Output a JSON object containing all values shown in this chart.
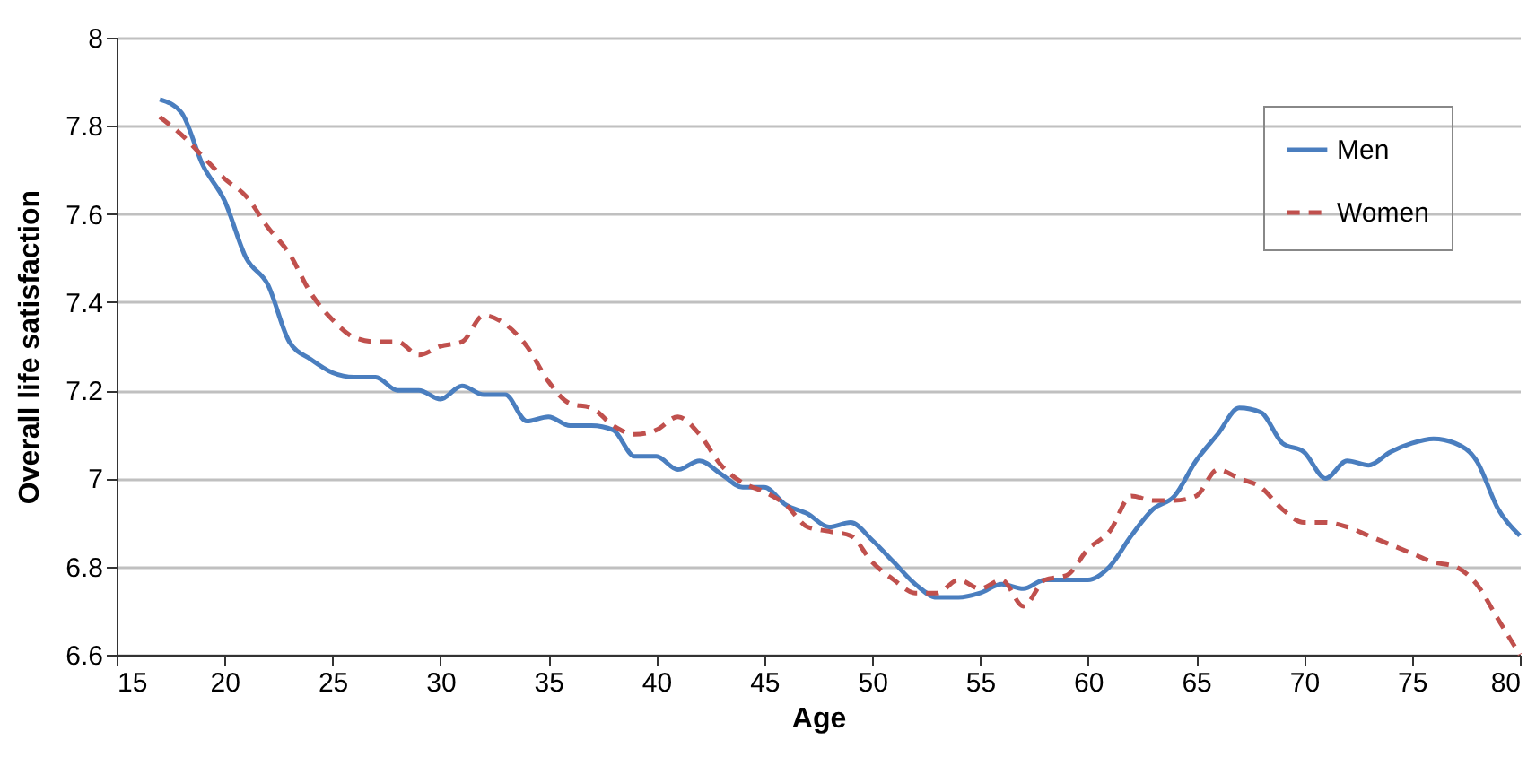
{
  "chart_data": {
    "type": "line",
    "xlabel": "Age",
    "ylabel": "Overall life satisfaction",
    "x": [
      17,
      18,
      19,
      20,
      21,
      22,
      23,
      24,
      25,
      26,
      27,
      28,
      29,
      30,
      31,
      32,
      33,
      34,
      35,
      36,
      37,
      38,
      39,
      40,
      41,
      42,
      43,
      44,
      45,
      46,
      47,
      48,
      49,
      50,
      51,
      52,
      53,
      54,
      55,
      56,
      57,
      58,
      59,
      60,
      61,
      62,
      63,
      64,
      65,
      66,
      67,
      68,
      69,
      70,
      71,
      72,
      73,
      74,
      75,
      76,
      77,
      78,
      79,
      80
    ],
    "series": [
      {
        "name": "Men",
        "color": "#4a7ebf",
        "line_style": "solid",
        "values": [
          7.86,
          7.83,
          7.71,
          7.63,
          7.5,
          7.44,
          7.31,
          7.27,
          7.24,
          7.23,
          7.23,
          7.2,
          7.2,
          7.18,
          7.21,
          7.19,
          7.19,
          7.13,
          7.14,
          7.12,
          7.12,
          7.11,
          7.05,
          7.05,
          7.02,
          7.04,
          7.01,
          6.98,
          6.98,
          6.94,
          6.92,
          6.89,
          6.9,
          6.86,
          6.81,
          6.76,
          6.73,
          6.73,
          6.74,
          6.76,
          6.75,
          6.77,
          6.77,
          6.77,
          6.8,
          6.87,
          6.93,
          6.96,
          7.04,
          7.1,
          7.16,
          7.15,
          7.08,
          7.06,
          7.0,
          7.04,
          7.03,
          7.06,
          7.08,
          7.09,
          7.08,
          7.04,
          6.93,
          6.87
        ]
      },
      {
        "name": "Women",
        "color": "#c0504d",
        "line_style": "dashed",
        "values": [
          7.82,
          7.78,
          7.73,
          7.68,
          7.64,
          7.57,
          7.51,
          7.42,
          7.36,
          7.32,
          7.31,
          7.31,
          7.28,
          7.3,
          7.31,
          7.37,
          7.35,
          7.3,
          7.22,
          7.17,
          7.16,
          7.12,
          7.1,
          7.11,
          7.14,
          7.1,
          7.03,
          6.99,
          6.97,
          6.94,
          6.89,
          6.88,
          6.87,
          6.81,
          6.77,
          6.74,
          6.74,
          6.77,
          6.75,
          6.77,
          6.71,
          6.77,
          6.78,
          6.84,
          6.88,
          6.96,
          6.95,
          6.95,
          6.96,
          7.02,
          7.0,
          6.98,
          6.93,
          6.9,
          6.9,
          6.89,
          6.87,
          6.85,
          6.83,
          6.81,
          6.8,
          6.76,
          6.68,
          6.6
        ]
      }
    ],
    "xlim": [
      15,
      80
    ],
    "xticks": [
      15,
      20,
      25,
      30,
      35,
      40,
      45,
      50,
      55,
      60,
      65,
      70,
      75,
      80
    ],
    "ylim": [
      6.6,
      8
    ],
    "yticks": [
      6.6,
      6.8,
      7,
      7.2,
      7.4,
      7.6,
      7.8,
      8
    ],
    "grid": "y",
    "legend": "top right"
  }
}
